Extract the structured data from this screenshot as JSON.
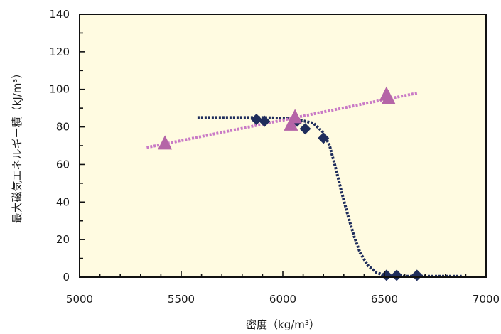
{
  "chart_data": {
    "type": "scatter",
    "title": "",
    "xlabel": "密度（kg/m³）",
    "ylabel": "最大磁気エネルギー積（kJ/m³）",
    "xlim": [
      5000,
      7000
    ],
    "ylim": [
      0,
      140
    ],
    "x_ticks": [
      "5000",
      "5500",
      "6000",
      "6500",
      "7000"
    ],
    "y_ticks": [
      "0",
      "20",
      "40",
      "60",
      "80",
      "100",
      "120",
      "140"
    ],
    "x_tick_values": [
      5000,
      5500,
      6000,
      6500,
      7000
    ],
    "y_tick_values": [
      0,
      20,
      40,
      60,
      80,
      100,
      120,
      140
    ],
    "grid": false,
    "legend": "none",
    "background": "#fffbe1",
    "series": [
      {
        "marker": "diamond",
        "color": "#1f2d5c",
        "x": [
          5870,
          5910,
          6070,
          6110,
          6200,
          6510,
          6560,
          6660
        ],
        "y": [
          84,
          83,
          83,
          79,
          74,
          1,
          1,
          1
        ]
      },
      {
        "marker": "triangle",
        "color": "#b565a7",
        "x": [
          5420,
          6040,
          6060,
          6510,
          6520
        ],
        "y": [
          71,
          81,
          85,
          97,
          95
        ]
      }
    ],
    "trend_lines": [
      {
        "style": "dotted",
        "color": "#1f2d5c",
        "x": [
          5580,
          5900,
          6050,
          6150,
          6200,
          6230,
          6260,
          6290,
          6320,
          6350,
          6380,
          6420,
          6460,
          6500,
          6550,
          6600,
          6700,
          6880
        ],
        "y": [
          85,
          85,
          84.5,
          82,
          77,
          70,
          58,
          45,
          33,
          22,
          13,
          6,
          2.5,
          1,
          0.5,
          0.5,
          0.5,
          0.5
        ]
      },
      {
        "style": "dotted",
        "color": "#c97ac6",
        "x": [
          5330,
          6660
        ],
        "y": [
          69,
          98
        ]
      }
    ]
  }
}
